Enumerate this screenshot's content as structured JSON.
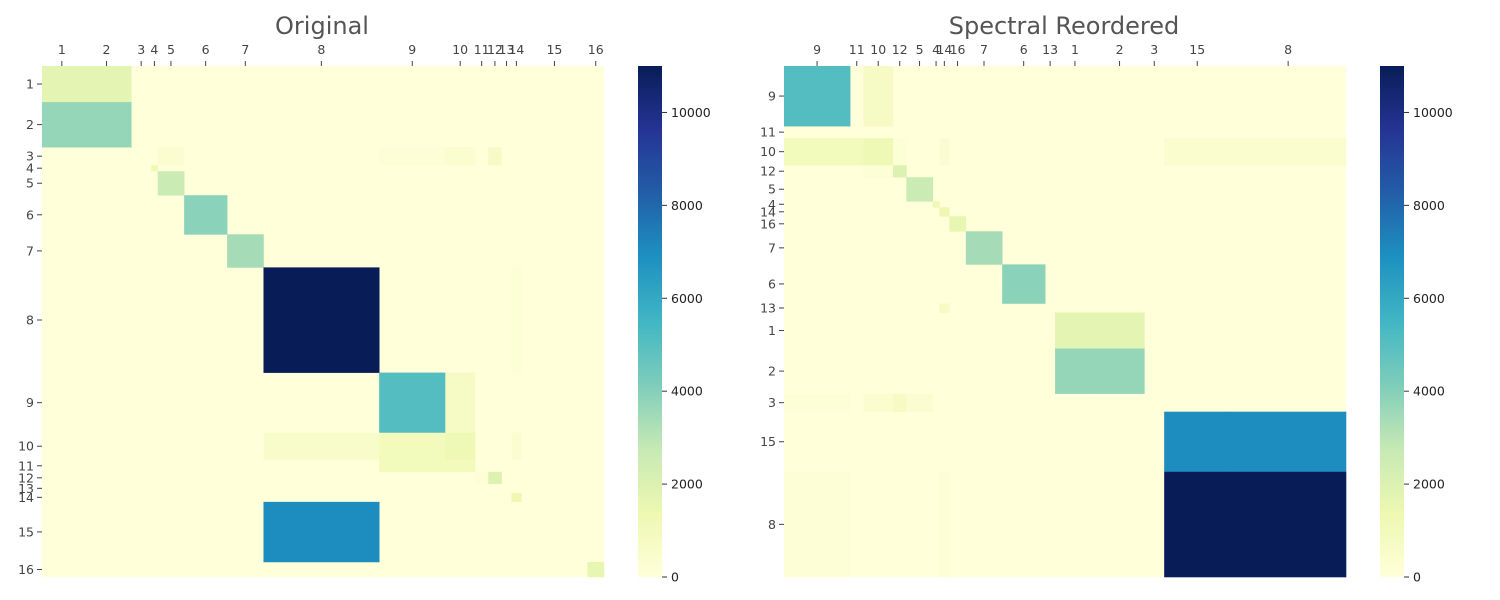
{
  "chart_data": [
    {
      "type": "heatmap",
      "title": "Original",
      "variable_size_blocks": true,
      "block_order": [
        "1",
        "2",
        "3",
        "4",
        "5",
        "6",
        "7",
        "8",
        "9",
        "10",
        "11",
        "12",
        "13",
        "14",
        "15",
        "16"
      ],
      "block_sizes": [
        12,
        15,
        6,
        2,
        8,
        13,
        11,
        35,
        20,
        9,
        4,
        4,
        3,
        3,
        20,
        5
      ],
      "tick_labels": [
        "1",
        "2",
        "3",
        "4",
        "5",
        "6",
        "7",
        "8",
        "9",
        "10",
        "11",
        "12",
        "13",
        "14",
        "15",
        "16"
      ],
      "color_scale": {
        "min": 0,
        "max": 11000,
        "colormap": "YlGnBu"
      },
      "colorbar": {
        "ticks": [
          0,
          2000,
          4000,
          6000,
          8000,
          10000
        ]
      },
      "cells": [
        {
          "row": "1",
          "col": "1",
          "value": 1700
        },
        {
          "row": "1",
          "col": "2",
          "value": 1700
        },
        {
          "row": "2",
          "col": "1",
          "value": 3700
        },
        {
          "row": "2",
          "col": "2",
          "value": 3700
        },
        {
          "row": "3",
          "col": "5",
          "value": 300
        },
        {
          "row": "3",
          "col": "9",
          "value": 150
        },
        {
          "row": "3",
          "col": "10",
          "value": 400
        },
        {
          "row": "3",
          "col": "12",
          "value": 700
        },
        {
          "row": "4",
          "col": "4",
          "value": 1200
        },
        {
          "row": "5",
          "col": "5",
          "value": 2600
        },
        {
          "row": "6",
          "col": "6",
          "value": 3900
        },
        {
          "row": "7",
          "col": "7",
          "value": 3400
        },
        {
          "row": "8",
          "col": "8",
          "value": 11000
        },
        {
          "row": "8",
          "col": "14",
          "value": 200
        },
        {
          "row": "9",
          "col": "9",
          "value": 5100
        },
        {
          "row": "9",
          "col": "10",
          "value": 700
        },
        {
          "row": "10",
          "col": "8",
          "value": 500
        },
        {
          "row": "10",
          "col": "9",
          "value": 1000
        },
        {
          "row": "10",
          "col": "10",
          "value": 1200
        },
        {
          "row": "10",
          "col": "14",
          "value": 300
        },
        {
          "row": "11",
          "col": "9",
          "value": 1000
        },
        {
          "row": "11",
          "col": "10",
          "value": 1000
        },
        {
          "row": "12",
          "col": "11",
          "value": 150
        },
        {
          "row": "12",
          "col": "12",
          "value": 2000
        },
        {
          "row": "14",
          "col": "14",
          "value": 1300
        },
        {
          "row": "15",
          "col": "8",
          "value": 7000
        },
        {
          "row": "16",
          "col": "16",
          "value": 1600
        }
      ]
    },
    {
      "type": "heatmap",
      "title": "Spectral Reordered",
      "variable_size_blocks": true,
      "block_order": [
        "9",
        "11",
        "10",
        "12",
        "5",
        "4",
        "14",
        "16",
        "7",
        "6",
        "13",
        "1",
        "2",
        "3",
        "15",
        "8"
      ],
      "block_sizes": [
        20,
        4,
        9,
        4,
        8,
        2,
        3,
        5,
        11,
        13,
        3,
        12,
        15,
        6,
        20,
        35
      ],
      "tick_labels": [
        "9",
        "11",
        "10",
        "12",
        "5",
        "4",
        "14",
        "16",
        "7",
        "6",
        "13",
        "1",
        "2",
        "3",
        "15",
        "8"
      ],
      "color_scale": {
        "min": 0,
        "max": 11000,
        "colormap": "YlGnBu"
      },
      "colorbar": {
        "ticks": [
          0,
          2000,
          4000,
          6000,
          8000,
          10000
        ]
      },
      "cells": [
        {
          "row": "9",
          "col": "9",
          "value": 5100
        },
        {
          "row": "9",
          "col": "10",
          "value": 700
        },
        {
          "row": "10",
          "col": "9",
          "value": 1000
        },
        {
          "row": "10",
          "col": "11",
          "value": 1000
        },
        {
          "row": "10",
          "col": "10",
          "value": 1200
        },
        {
          "row": "10",
          "col": "12",
          "value": 200
        },
        {
          "row": "10",
          "col": "14",
          "value": 300
        },
        {
          "row": "10",
          "col": "15",
          "value": 400
        },
        {
          "row": "10",
          "col": "8",
          "value": 400
        },
        {
          "row": "12",
          "col": "10",
          "value": 150
        },
        {
          "row": "12",
          "col": "12",
          "value": 2000
        },
        {
          "row": "5",
          "col": "5",
          "value": 2600
        },
        {
          "row": "4",
          "col": "4",
          "value": 1200
        },
        {
          "row": "14",
          "col": "14",
          "value": 1300
        },
        {
          "row": "16",
          "col": "16",
          "value": 1600
        },
        {
          "row": "7",
          "col": "7",
          "value": 3400
        },
        {
          "row": "6",
          "col": "6",
          "value": 3900
        },
        {
          "row": "13",
          "col": "14",
          "value": 800
        },
        {
          "row": "1",
          "col": "1",
          "value": 1700
        },
        {
          "row": "1",
          "col": "2",
          "value": 1700
        },
        {
          "row": "2",
          "col": "1",
          "value": 3700
        },
        {
          "row": "2",
          "col": "2",
          "value": 3700
        },
        {
          "row": "3",
          "col": "9",
          "value": 150
        },
        {
          "row": "3",
          "col": "10",
          "value": 400
        },
        {
          "row": "3",
          "col": "12",
          "value": 700
        },
        {
          "row": "3",
          "col": "5",
          "value": 300
        },
        {
          "row": "15",
          "col": "15",
          "value": 7000
        },
        {
          "row": "15",
          "col": "8",
          "value": 7000
        },
        {
          "row": "8",
          "col": "9",
          "value": 100
        },
        {
          "row": "8",
          "col": "14",
          "value": 200
        },
        {
          "row": "8",
          "col": "15",
          "value": 11000
        },
        {
          "row": "8",
          "col": "8",
          "value": 11000
        }
      ]
    }
  ]
}
